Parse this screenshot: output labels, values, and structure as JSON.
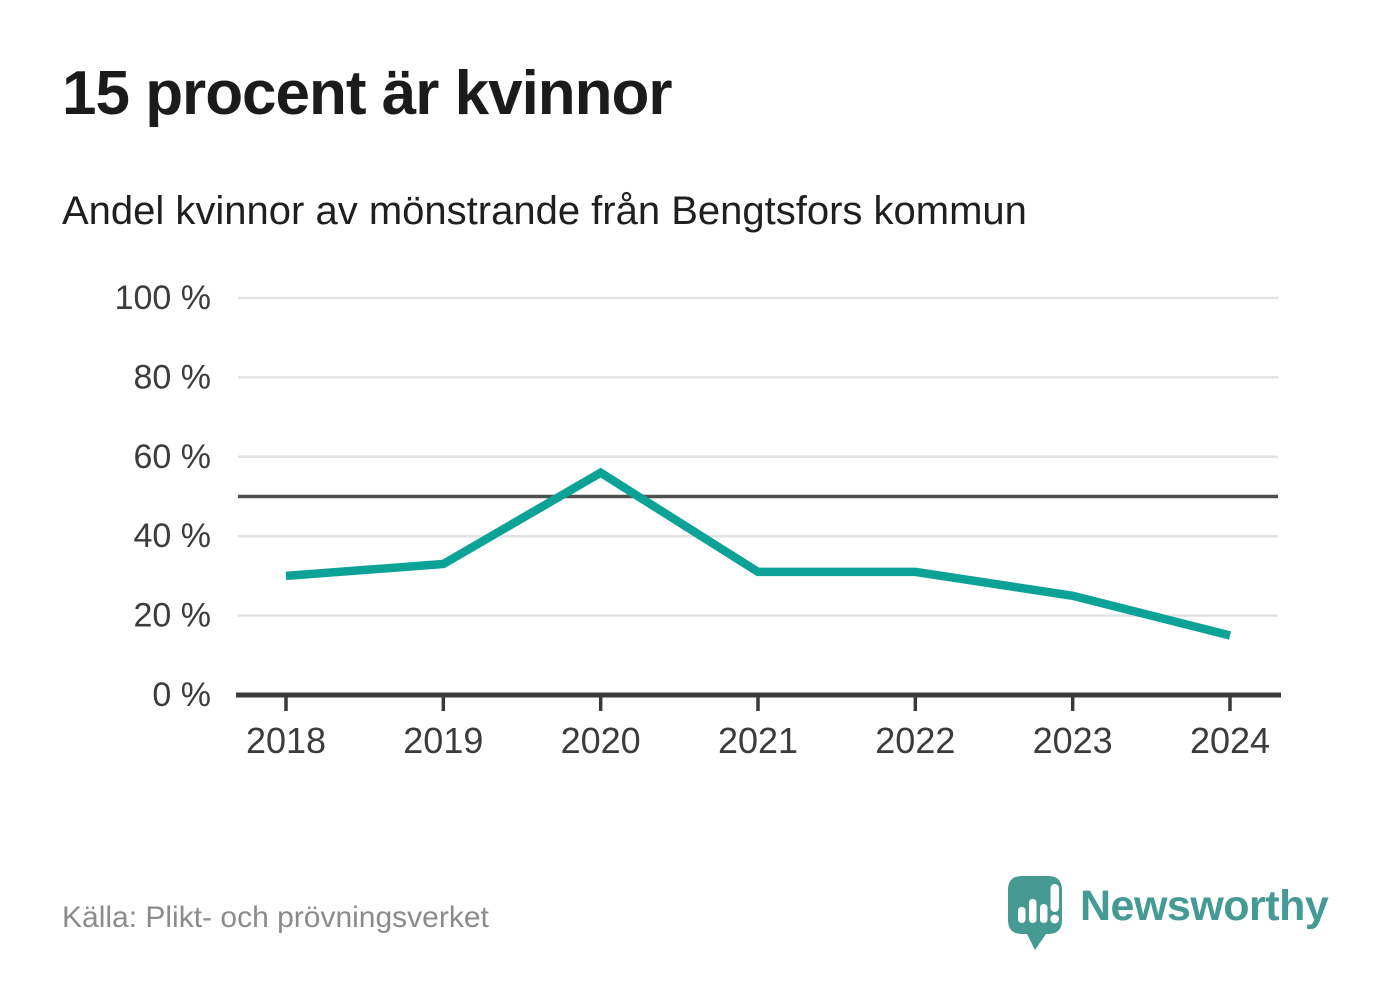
{
  "header": {
    "title": "15 procent är kvinnor",
    "subtitle": "Andel kvinnor av mönstrande från Bengtsfors kommun"
  },
  "footer": {
    "source": "Källa: Plikt- och prövningsverket",
    "brand": "Newsworthy"
  },
  "colors": {
    "line": "#0da296",
    "brand": "#459a93",
    "grid": "#e2e2e2",
    "reference": "#4f4f4f",
    "axis": "#3a3a3a",
    "label": "#3c3c3c",
    "title": "#1b1b1b",
    "source": "#8b8b8b"
  },
  "chart_data": {
    "type": "line",
    "title": "15 procent är kvinnor",
    "subtitle": "Andel kvinnor av mönstrande från Bengtsfors kommun",
    "categories": [
      "2018",
      "2019",
      "2020",
      "2021",
      "2022",
      "2023",
      "2024"
    ],
    "series": [
      {
        "name": "Andel kvinnor av mönstrande",
        "values": [
          30,
          33,
          56,
          31,
          31,
          25,
          15
        ]
      }
    ],
    "unit": "%",
    "xlabel": "",
    "ylabel": "",
    "ylim": [
      0,
      100
    ],
    "yticks": [
      0,
      20,
      40,
      60,
      80,
      100
    ],
    "ytick_labels": [
      "0 %",
      "20 %",
      "40 %",
      "60 %",
      "80 %",
      "100 %"
    ],
    "reference_line": 50,
    "grid": true,
    "legend": "none"
  }
}
